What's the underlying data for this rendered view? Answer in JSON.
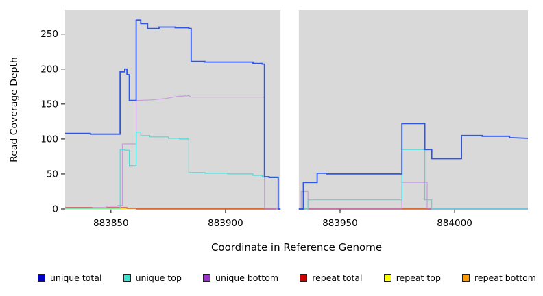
{
  "chart_data": {
    "type": "line",
    "title": "",
    "xlabel": "Coordinate in Reference Genome",
    "ylabel": "Read Coverage Depth",
    "xlim": [
      883830,
      884032
    ],
    "ylim": [
      0,
      285
    ],
    "x_ticks": [
      883850,
      883900,
      883950,
      884000
    ],
    "y_ticks": [
      0,
      50,
      100,
      150,
      200,
      250
    ],
    "grid": false,
    "legend_position": "bottom",
    "panel_background": "#d9d9d9",
    "gap_region": {
      "x_start": 883924,
      "x_end": 883932
    },
    "series": [
      {
        "name": "unique total",
        "color": "#2d55e8",
        "legend_color": "#0000cc",
        "line_width": 1.8,
        "segments": [
          [
            [
              883830,
              108
            ],
            [
              883841,
              108
            ],
            [
              883841,
              107
            ],
            [
              883854,
              107
            ],
            [
              883854,
              196
            ],
            [
              883856,
              196
            ],
            [
              883856,
              200
            ],
            [
              883857,
              200
            ],
            [
              883857,
              192
            ],
            [
              883858,
              192
            ],
            [
              883858,
              155
            ],
            [
              883861,
              155
            ],
            [
              883861,
              270
            ],
            [
              883863,
              270
            ],
            [
              883863,
              265
            ],
            [
              883866,
              265
            ],
            [
              883866,
              258
            ],
            [
              883871,
              258
            ],
            [
              883871,
              260
            ],
            [
              883878,
              260
            ],
            [
              883878,
              259
            ],
            [
              883884,
              259
            ],
            [
              883884,
              258
            ],
            [
              883885,
              258
            ],
            [
              883885,
              211
            ],
            [
              883891,
              211
            ],
            [
              883891,
              210
            ],
            [
              883912,
              210
            ],
            [
              883912,
              208
            ],
            [
              883916,
              208
            ],
            [
              883916,
              207
            ],
            [
              883917,
              207
            ],
            [
              883917,
              46
            ],
            [
              883919,
              46
            ],
            [
              883919,
              45
            ],
            [
              883923,
              45
            ],
            [
              883923,
              0
            ],
            [
              883924,
              0
            ]
          ],
          [
            [
              883932,
              0
            ],
            [
              883934,
              0
            ],
            [
              883934,
              38
            ],
            [
              883940,
              38
            ],
            [
              883940,
              51
            ],
            [
              883944,
              51
            ],
            [
              883944,
              50
            ],
            [
              883977,
              50
            ],
            [
              883977,
              122
            ],
            [
              883987,
              122
            ],
            [
              883987,
              85
            ],
            [
              883990,
              85
            ],
            [
              883990,
              72
            ],
            [
              884003,
              72
            ],
            [
              884003,
              105
            ],
            [
              884012,
              105
            ],
            [
              884012,
              104
            ],
            [
              884024,
              104
            ],
            [
              884024,
              102
            ],
            [
              884032,
              101
            ]
          ]
        ]
      },
      {
        "name": "unique top",
        "color": "#45dcdc",
        "legend_color": "#40e0d0",
        "line_width": 1.2,
        "segments": [
          [
            [
              883830,
              1
            ],
            [
              883854,
              1
            ],
            [
              883854,
              85
            ],
            [
              883856,
              85
            ],
            [
              883856,
              84
            ],
            [
              883858,
              84
            ],
            [
              883858,
              62
            ],
            [
              883861,
              62
            ],
            [
              883861,
              110
            ],
            [
              883863,
              110
            ],
            [
              883863,
              105
            ],
            [
              883867,
              105
            ],
            [
              883867,
              103
            ],
            [
              883875,
              103
            ],
            [
              883875,
              101
            ],
            [
              883880,
              101
            ],
            [
              883880,
              100
            ],
            [
              883884,
              100
            ],
            [
              883884,
              52
            ],
            [
              883891,
              52
            ],
            [
              883891,
              51
            ],
            [
              883901,
              51
            ],
            [
              883901,
              50
            ],
            [
              883912,
              50
            ],
            [
              883912,
              48
            ],
            [
              883916,
              48
            ],
            [
              883916,
              46
            ],
            [
              883923,
              46
            ],
            [
              883923,
              0
            ],
            [
              883924,
              0
            ]
          ],
          [
            [
              883932,
              0
            ],
            [
              883936,
              0
            ],
            [
              883936,
              13
            ],
            [
              883977,
              13
            ],
            [
              883977,
              85
            ],
            [
              883987,
              85
            ],
            [
              883987,
              13
            ],
            [
              883990,
              13
            ],
            [
              883990,
              0
            ],
            [
              884032,
              0
            ]
          ]
        ]
      },
      {
        "name": "unique bottom",
        "color": "#c79bdc",
        "legend_color": "#9933cc",
        "line_width": 1.2,
        "segments": [
          [
            [
              883830,
              1
            ],
            [
              883842,
              1
            ],
            [
              883842,
              2
            ],
            [
              883848,
              2
            ],
            [
              883848,
              4
            ],
            [
              883853,
              4
            ],
            [
              883853,
              5
            ],
            [
              883855,
              5
            ],
            [
              883855,
              93
            ],
            [
              883861,
              93
            ],
            [
              883861,
              155
            ],
            [
              883868,
              156
            ],
            [
              883874,
              158
            ],
            [
              883879,
              161
            ],
            [
              883884,
              162
            ],
            [
              883885,
              160
            ],
            [
              883917,
              160
            ],
            [
              883917,
              1
            ],
            [
              883922,
              1
            ],
            [
              883922,
              0
            ],
            [
              883924,
              0
            ]
          ],
          [
            [
              883932,
              0
            ],
            [
              883933,
              0
            ],
            [
              883933,
              25
            ],
            [
              883936,
              25
            ],
            [
              883936,
              1
            ],
            [
              883977,
              1
            ],
            [
              883977,
              38
            ],
            [
              883988,
              38
            ],
            [
              883988,
              1
            ],
            [
              884032,
              1
            ]
          ]
        ]
      },
      {
        "name": "repeat total",
        "color": "#c23b3b",
        "legend_color": "#cc0000",
        "line_width": 1.2,
        "segments": [
          [
            [
              883830,
              2
            ],
            [
              883857,
              2
            ],
            [
              883857,
              1
            ],
            [
              883861,
              1
            ],
            [
              883861,
              0
            ],
            [
              883924,
              0
            ]
          ],
          [
            [
              883932,
              0
            ],
            [
              884032,
              0
            ]
          ]
        ]
      },
      {
        "name": "repeat top",
        "color": "#ffff33",
        "legend_color": "#ffff00",
        "line_width": 1.2,
        "segments": [
          [
            [
              883830,
              0
            ],
            [
              883924,
              0
            ]
          ],
          [
            [
              883932,
              0
            ],
            [
              884032,
              0
            ]
          ]
        ]
      },
      {
        "name": "repeat bottom",
        "color": "#f5a01e",
        "legend_color": "#ff9900",
        "line_width": 1.4,
        "segments": [
          [
            [
              883830,
              0
            ],
            [
              883856,
              0
            ],
            [
              883856,
              1
            ],
            [
              883923,
              1
            ],
            [
              883923,
              0
            ],
            [
              883924,
              0
            ]
          ],
          [
            [
              883932,
              0
            ],
            [
              883934,
              0
            ],
            [
              883934,
              1
            ],
            [
              883988,
              1
            ],
            [
              883988,
              0
            ],
            [
              884032,
              0
            ]
          ]
        ]
      }
    ]
  }
}
